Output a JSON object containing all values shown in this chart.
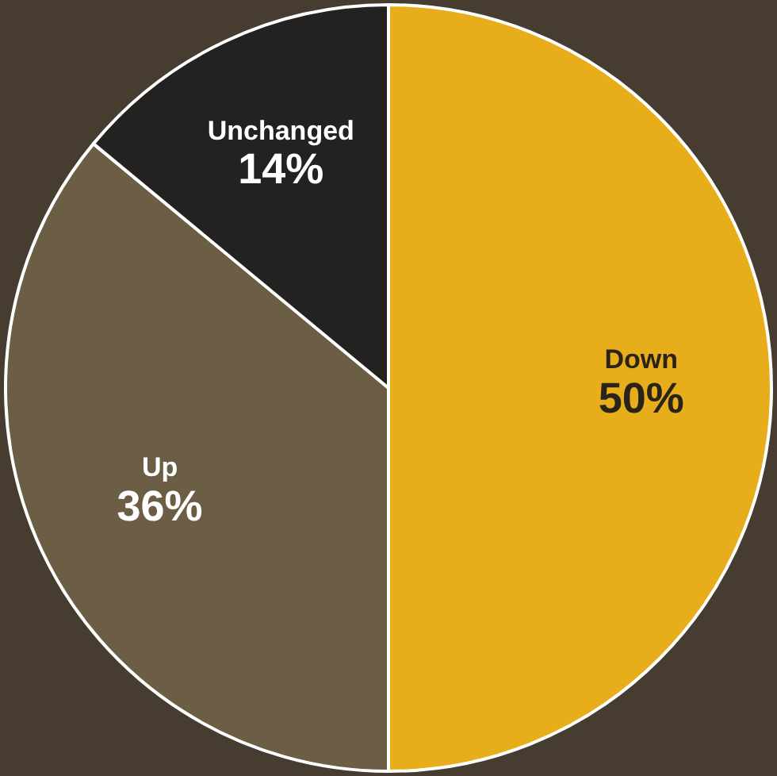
{
  "chart_data": {
    "type": "pie",
    "categories": [
      "Down",
      "Up",
      "Unchanged"
    ],
    "values": [
      50,
      36,
      14
    ],
    "value_labels": [
      "50%",
      "36%",
      "14%"
    ],
    "colors": [
      "#e8ad1a",
      "#6b5e45",
      "#232220"
    ],
    "legend": false
  }
}
